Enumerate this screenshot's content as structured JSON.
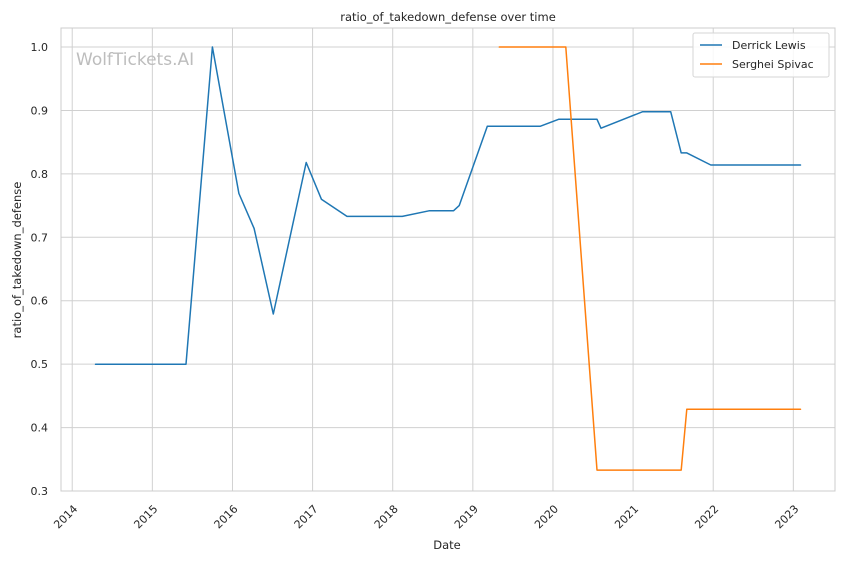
{
  "chart_data": {
    "type": "line",
    "title": "ratio_of_takedown_defense over time",
    "xlabel": "Date",
    "ylabel": "ratio_of_takedown_defense",
    "watermark": "WolfTickets.AI",
    "xlim": [
      2013.86,
      2023.52
    ],
    "ylim": [
      0.3,
      1.03
    ],
    "x_ticks": [
      2014,
      2015,
      2016,
      2017,
      2018,
      2019,
      2020,
      2021,
      2022,
      2023
    ],
    "x_tick_labels": [
      "2014",
      "2015",
      "2016",
      "2017",
      "2018",
      "2019",
      "2020",
      "2021",
      "2022",
      "2023"
    ],
    "y_ticks": [
      0.3,
      0.4,
      0.5,
      0.6,
      0.7,
      0.8,
      0.9,
      1.0
    ],
    "y_tick_labels": [
      "0.3",
      "0.4",
      "0.5",
      "0.6",
      "0.7",
      "0.8",
      "0.9",
      "1.0"
    ],
    "grid": true,
    "legend_position": "top-right",
    "series": [
      {
        "name": "Derrick Lewis",
        "color": "#1f77b4",
        "x": [
          2014.29,
          2015.42,
          2015.75,
          2016.08,
          2016.27,
          2016.51,
          2016.92,
          2017.11,
          2017.43,
          2018.12,
          2018.46,
          2018.76,
          2018.83,
          2019.18,
          2019.84,
          2020.07,
          2020.55,
          2020.6,
          2021.12,
          2021.47,
          2021.6,
          2021.67,
          2021.97,
          2023.09
        ],
        "y": [
          0.5,
          0.5,
          1.0,
          0.769,
          0.714,
          0.579,
          0.818,
          0.76,
          0.733,
          0.733,
          0.742,
          0.742,
          0.75,
          0.875,
          0.875,
          0.886,
          0.886,
          0.872,
          0.898,
          0.898,
          0.833,
          0.833,
          0.814,
          0.814
        ]
      },
      {
        "name": "Serghei Spivac",
        "color": "#ff7f0e",
        "x": [
          2019.33,
          2020.16,
          2020.55,
          2021.6,
          2021.67,
          2023.09
        ],
        "y": [
          1.0,
          1.0,
          0.333,
          0.333,
          0.429,
          0.429
        ]
      }
    ]
  }
}
